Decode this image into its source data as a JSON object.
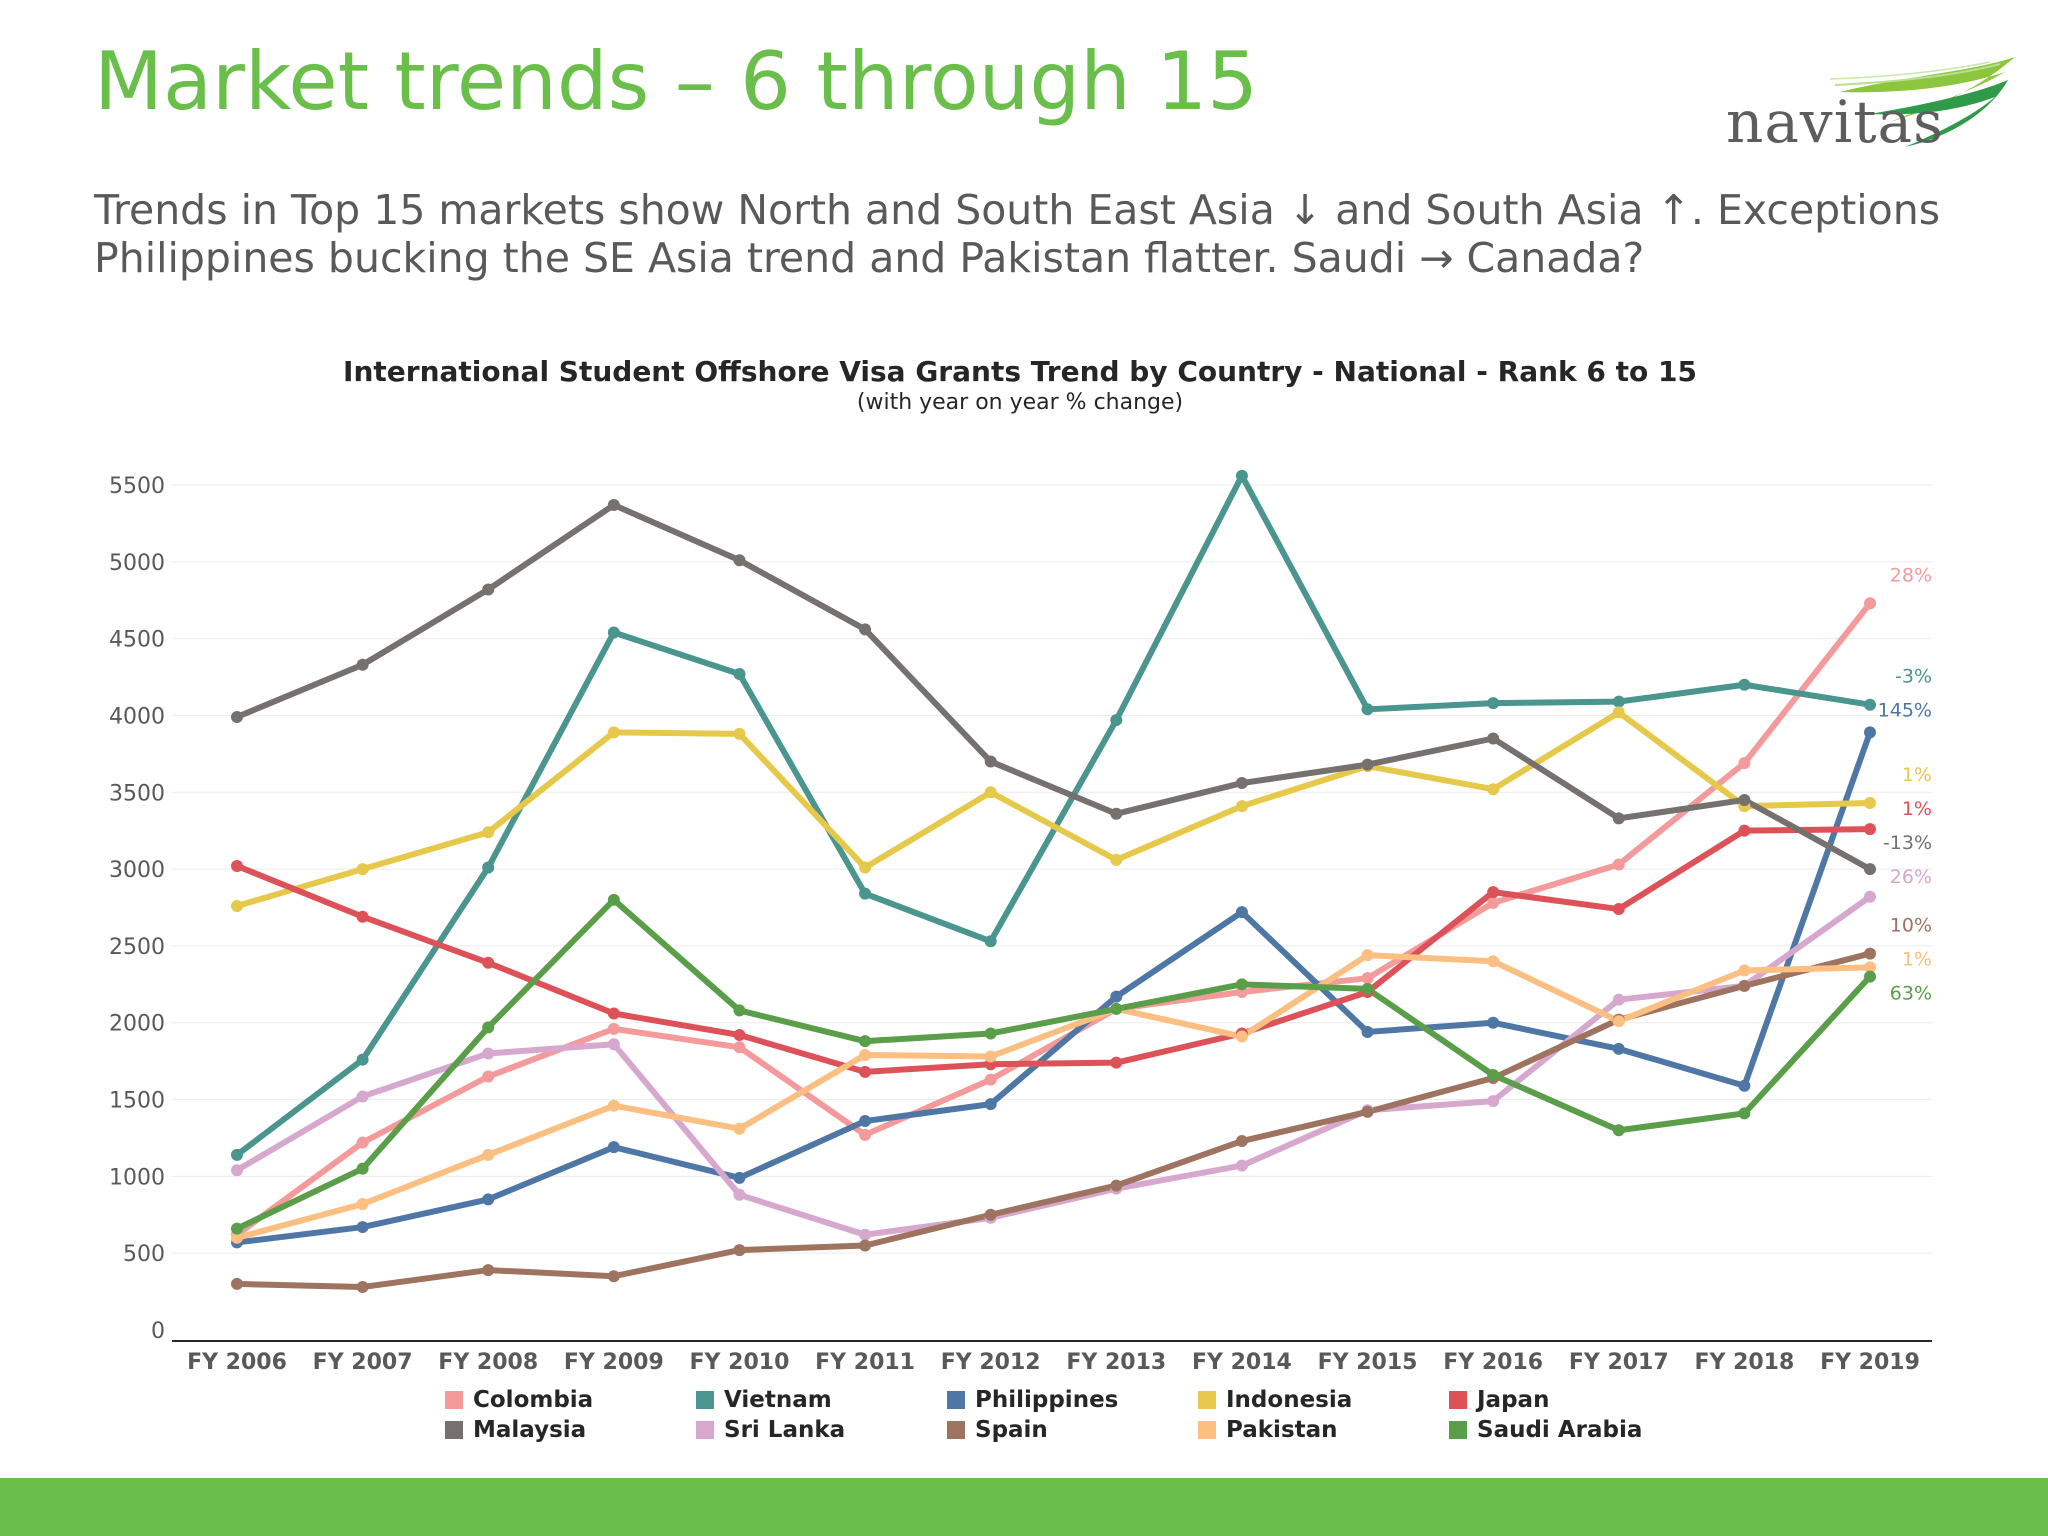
{
  "slide": {
    "title": "Market trends – 6 through 15",
    "subtitle": "Trends in Top 15 markets show North and South East Asia ↓ and South Asia ↑. Exceptions Philippines bucking the SE Asia trend and Pakistan flatter. Saudi → Canada?",
    "logo_text": "navitas",
    "brand_color": "#6abf4b"
  },
  "chart_data": {
    "type": "line",
    "title": "International Student Offshore Visa Grants Trend by Country - National - Rank 6 to 15",
    "subtitle": "(with year on year % change)",
    "xlabel": "",
    "ylabel": "",
    "ylim": [
      0,
      5500
    ],
    "yticks": [
      0,
      500,
      1000,
      1500,
      2000,
      2500,
      3000,
      3500,
      4000,
      4500,
      5000,
      5500
    ],
    "grid": true,
    "legend_position": "bottom",
    "categories": [
      "FY 2006",
      "FY 2007",
      "FY 2008",
      "FY 2009",
      "FY 2010",
      "FY 2011",
      "FY 2012",
      "FY 2013",
      "FY 2014",
      "FY 2015",
      "FY 2016",
      "FY 2017",
      "FY 2018",
      "FY 2019"
    ],
    "series": [
      {
        "name": "Colombia",
        "color": "#f49a9a",
        "change_label": "28%",
        "values": [
          620,
          1220,
          1650,
          1960,
          1840,
          1270,
          1630,
          2090,
          2200,
          2290,
          2780,
          3030,
          3690,
          4730
        ]
      },
      {
        "name": "Vietnam",
        "color": "#4a958d",
        "change_label": "-3%",
        "values": [
          1140,
          1760,
          3010,
          4540,
          4270,
          2840,
          2530,
          3970,
          5560,
          4040,
          4080,
          4090,
          4200,
          4070
        ]
      },
      {
        "name": "Philippines",
        "color": "#4e77a5",
        "change_label": "145%",
        "values": [
          570,
          670,
          850,
          1190,
          990,
          1360,
          1470,
          2170,
          2720,
          1940,
          2000,
          1830,
          1590,
          3890
        ]
      },
      {
        "name": "Indonesia",
        "color": "#e6c84b",
        "change_label": "1%",
        "values": [
          2760,
          3000,
          3240,
          3890,
          3880,
          3010,
          3500,
          3060,
          3410,
          3670,
          3520,
          4020,
          3410,
          3430
        ]
      },
      {
        "name": "Japan",
        "color": "#dd5258",
        "change_label": "1%",
        "values": [
          3020,
          2690,
          2390,
          2060,
          1920,
          1680,
          1730,
          1740,
          1930,
          2200,
          2850,
          2740,
          3250,
          3260
        ]
      },
      {
        "name": "Malaysia",
        "color": "#76706e",
        "change_label": "-13%",
        "values": [
          3990,
          4330,
          4820,
          5370,
          5010,
          4560,
          3700,
          3360,
          3560,
          3680,
          3850,
          3330,
          3450,
          3000
        ]
      },
      {
        "name": "Sri Lanka",
        "color": "#d7a8ce",
        "change_label": "26%",
        "values": [
          1040,
          1520,
          1800,
          1860,
          880,
          620,
          730,
          920,
          1070,
          1430,
          1490,
          2150,
          2240,
          2820
        ]
      },
      {
        "name": "Spain",
        "color": "#9e7461",
        "change_label": "10%",
        "values": [
          300,
          280,
          390,
          350,
          520,
          550,
          750,
          940,
          1230,
          1420,
          1640,
          2020,
          2240,
          2450
        ]
      },
      {
        "name": "Pakistan",
        "color": "#fbbf81",
        "change_label": "1%",
        "values": [
          600,
          820,
          1140,
          1460,
          1310,
          1790,
          1780,
          2090,
          1910,
          2440,
          2400,
          2010,
          2340,
          2360
        ]
      },
      {
        "name": "Saudi Arabia",
        "color": "#5a9e4a",
        "change_label": "63%",
        "values": [
          660,
          1050,
          1970,
          2800,
          2080,
          1880,
          1930,
          2090,
          2250,
          2220,
          1660,
          1300,
          1410,
          2300
        ]
      }
    ]
  }
}
